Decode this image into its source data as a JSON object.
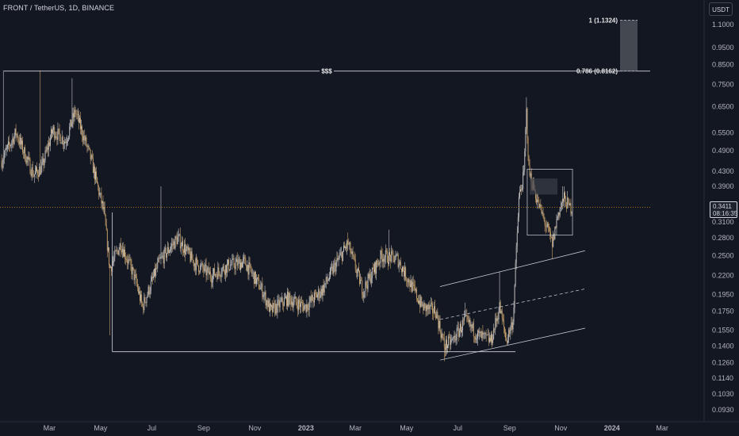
{
  "header": {
    "title": "FRONT / TetherUS, 1D, BINANCE",
    "currency": "USDT"
  },
  "price": {
    "last": "0.3411",
    "countdown": "08:16:35"
  },
  "colors": {
    "background": "#131722",
    "candle_up": "#c8c8c8",
    "candle_down": "#c9a26b",
    "lines": "#d1d4dc",
    "price_line": "#f7a600"
  },
  "chart_data": {
    "type": "candlestick",
    "symbol": "FRONT/USDT",
    "interval": "1D",
    "exchange": "BINANCE",
    "y_scale": "log",
    "ylim": [
      0.085,
      1.17
    ],
    "y_ticks": [
      "1.1000",
      "0.9500",
      "0.8500",
      "0.7500",
      "0.6500",
      "0.5500",
      "0.4900",
      "0.4300",
      "0.3900",
      "0.3100",
      "0.2800",
      "0.2500",
      "0.2200",
      "0.1950",
      "0.1750",
      "0.1550",
      "0.1400",
      "0.1260",
      "0.1140",
      "0.1030",
      "0.0930"
    ],
    "x_ticks": [
      "Mar",
      "May",
      "Jul",
      "Sep",
      "Nov",
      "2023",
      "Mar",
      "May",
      "Jul",
      "Sep",
      "Nov",
      "2024",
      "Mar"
    ],
    "x_range": [
      "2022-01-01",
      "2024-04-20"
    ],
    "x_tick_dates": [
      "2022-03-01",
      "2022-05-01",
      "2022-07-01",
      "2022-09-01",
      "2022-11-01",
      "2023-01-01",
      "2023-03-01",
      "2023-05-01",
      "2023-07-01",
      "2023-09-01",
      "2023-11-01",
      "2024-01-01",
      "2024-03-01"
    ],
    "last_price": 0.3411,
    "price_path": [
      [
        "2022-01-03",
        0.46
      ],
      [
        "2022-01-20",
        0.55
      ],
      [
        "2022-02-10",
        0.42
      ],
      [
        "2022-02-20",
        0.44
      ],
      [
        "2022-03-05",
        0.56
      ],
      [
        "2022-03-20",
        0.52
      ],
      [
        "2022-04-01",
        0.63
      ],
      [
        "2022-04-20",
        0.46
      ],
      [
        "2022-05-05",
        0.33
      ],
      [
        "2022-05-12",
        0.23
      ],
      [
        "2022-05-25",
        0.27
      ],
      [
        "2022-06-10",
        0.22
      ],
      [
        "2022-06-20",
        0.18
      ],
      [
        "2022-07-10",
        0.24
      ],
      [
        "2022-08-01",
        0.28
      ],
      [
        "2022-08-20",
        0.24
      ],
      [
        "2022-09-10",
        0.22
      ],
      [
        "2022-10-01",
        0.235
      ],
      [
        "2022-10-20",
        0.24
      ],
      [
        "2022-11-10",
        0.2
      ],
      [
        "2022-11-20",
        0.175
      ],
      [
        "2022-12-10",
        0.19
      ],
      [
        "2022-12-31",
        0.18
      ],
      [
        "2023-01-20",
        0.2
      ],
      [
        "2023-02-05",
        0.235
      ],
      [
        "2023-02-20",
        0.27
      ],
      [
        "2023-03-10",
        0.2
      ],
      [
        "2023-04-01",
        0.25
      ],
      [
        "2023-04-20",
        0.245
      ],
      [
        "2023-05-05",
        0.21
      ],
      [
        "2023-05-20",
        0.18
      ],
      [
        "2023-06-05",
        0.175
      ],
      [
        "2023-06-15",
        0.14
      ],
      [
        "2023-06-25",
        0.145
      ],
      [
        "2023-07-10",
        0.165
      ],
      [
        "2023-07-25",
        0.15
      ],
      [
        "2023-08-10",
        0.145
      ],
      [
        "2023-08-20",
        0.18
      ],
      [
        "2023-08-28",
        0.145
      ],
      [
        "2023-09-05",
        0.165
      ],
      [
        "2023-09-12",
        0.36
      ],
      [
        "2023-09-18",
        0.42
      ],
      [
        "2023-09-21",
        0.63
      ],
      [
        "2023-09-24",
        0.43
      ],
      [
        "2023-10-05",
        0.35
      ],
      [
        "2023-10-15",
        0.3
      ],
      [
        "2023-10-22",
        0.27
      ],
      [
        "2023-10-29",
        0.33
      ],
      [
        "2023-11-05",
        0.36
      ],
      [
        "2023-11-12",
        0.34
      ],
      [
        "2023-11-14",
        0.3411
      ]
    ],
    "annotations": {
      "fib_top_label": "1 (1.1324)",
      "fib_top_value": 1.1324,
      "fib_bottom_label": "0.786 (0.8162)",
      "fib_bottom_value": 0.8162,
      "liquidity_label": "$$$",
      "liquidity_level": 0.8162,
      "range_low": 0.135,
      "box_high": 0.435,
      "box_low": 0.285,
      "channel": [
        {
          "style": "solid",
          "start": [
            "2023-06-10",
            0.205
          ],
          "end": [
            "2023-11-30",
            0.258
          ]
        },
        {
          "style": "dashed",
          "start": [
            "2023-06-10",
            0.166
          ],
          "end": [
            "2023-11-30",
            0.202
          ]
        },
        {
          "style": "solid",
          "start": [
            "2023-06-10",
            0.128
          ],
          "end": [
            "2023-11-30",
            0.157
          ]
        }
      ]
    }
  }
}
